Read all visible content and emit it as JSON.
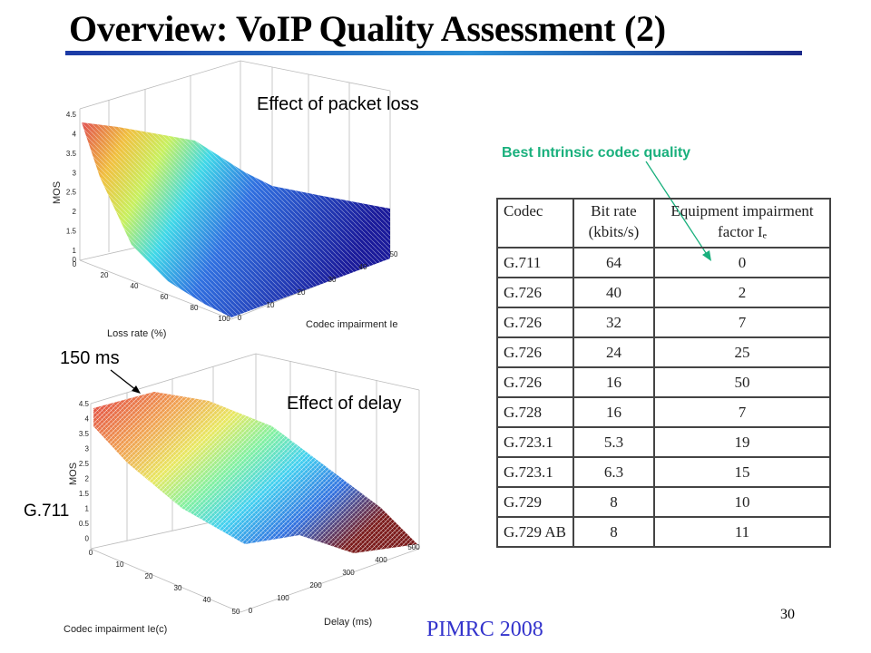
{
  "title": "Overview: VoIP Quality Assessment (2)",
  "colors": {
    "title_rule": "#1c3aa5",
    "best_note": "#1ab07d",
    "footer": "#3333cc"
  },
  "plot_top": {
    "annotation": "Effect of packet loss",
    "z_label": "MOS",
    "x_label": "Loss rate (%)",
    "y_label": "Codec impairment Ie",
    "z_ticks": [
      "4.5",
      "4",
      "3.5",
      "3",
      "2.5",
      "2",
      "1.5",
      "1",
      "0"
    ],
    "x_ticks": [
      "0",
      "20",
      "40",
      "60",
      "80",
      "100"
    ],
    "y_ticks": [
      "0",
      "10",
      "20",
      "30",
      "40",
      "50"
    ]
  },
  "plot_bottom": {
    "annotation": "Effect of delay",
    "callout_peak": "150 ms",
    "callout_codec": "G.711",
    "z_label": "MOS",
    "x_label": "Codec impairment Ie(c)",
    "y_label": "Delay (ms)",
    "z_ticks": [
      "4.5",
      "4",
      "3.5",
      "3",
      "2.5",
      "2",
      "1.5",
      "1",
      "0.5",
      "0"
    ],
    "x_ticks": [
      "0",
      "10",
      "20",
      "30",
      "40",
      "50"
    ],
    "y_ticks": [
      "0",
      "100",
      "200",
      "300",
      "400",
      "500"
    ]
  },
  "best_note": "Best Intrinsic codec quality",
  "table": {
    "headers": [
      "Codec",
      "Bit rate (kbits/s)",
      "Equipment impairment factor Iₑ"
    ],
    "rows": [
      [
        "G.711",
        "64",
        "0"
      ],
      [
        "G.726",
        "40",
        "2"
      ],
      [
        "G.726",
        "32",
        "7"
      ],
      [
        "G.726",
        "24",
        "25"
      ],
      [
        "G.726",
        "16",
        "50"
      ],
      [
        "G.728",
        "16",
        "7"
      ],
      [
        "G.723.1",
        "5.3",
        "19"
      ],
      [
        "G.723.1",
        "6.3",
        "15"
      ],
      [
        "G.729",
        "8",
        "10"
      ],
      [
        "G.729 AB",
        "8",
        "11"
      ]
    ]
  },
  "footer": "PIMRC 2008",
  "page_number": "30"
}
